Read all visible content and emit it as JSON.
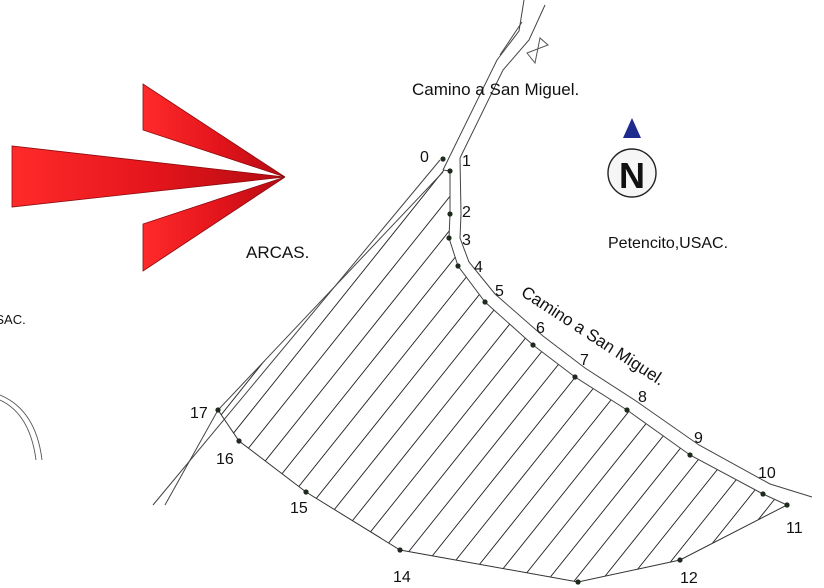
{
  "labels": {
    "road_top": "Camino a San Miguel.",
    "road_diag": "Camino a San Miguel.",
    "arcas": "ARCAS.",
    "petencito": "Petencito,USAC.",
    "usac_left": "USAC.",
    "north": "N"
  },
  "stations": [
    {
      "id": "0",
      "label": "0"
    },
    {
      "id": "1",
      "label": "1"
    },
    {
      "id": "2",
      "label": "2"
    },
    {
      "id": "3",
      "label": "3"
    },
    {
      "id": "4",
      "label": "4"
    },
    {
      "id": "5",
      "label": "5"
    },
    {
      "id": "6",
      "label": "6"
    },
    {
      "id": "7",
      "label": "7"
    },
    {
      "id": "8",
      "label": "8"
    },
    {
      "id": "9",
      "label": "9"
    },
    {
      "id": "10",
      "label": "10"
    },
    {
      "id": "11",
      "label": "11"
    },
    {
      "id": "12",
      "label": "12"
    },
    {
      "id": "13",
      "label": ""
    },
    {
      "id": "14",
      "label": "14"
    },
    {
      "id": "15",
      "label": "15"
    },
    {
      "id": "16",
      "label": "16"
    },
    {
      "id": "17",
      "label": "17"
    }
  ],
  "colors": {
    "arrow_red": "#e2141b",
    "north_triangle": "#1f2a8f",
    "ink": "#111111"
  },
  "icons": {
    "direction_arrow": "red-arrow-icon",
    "north_marker": "north-arrow-icon"
  }
}
